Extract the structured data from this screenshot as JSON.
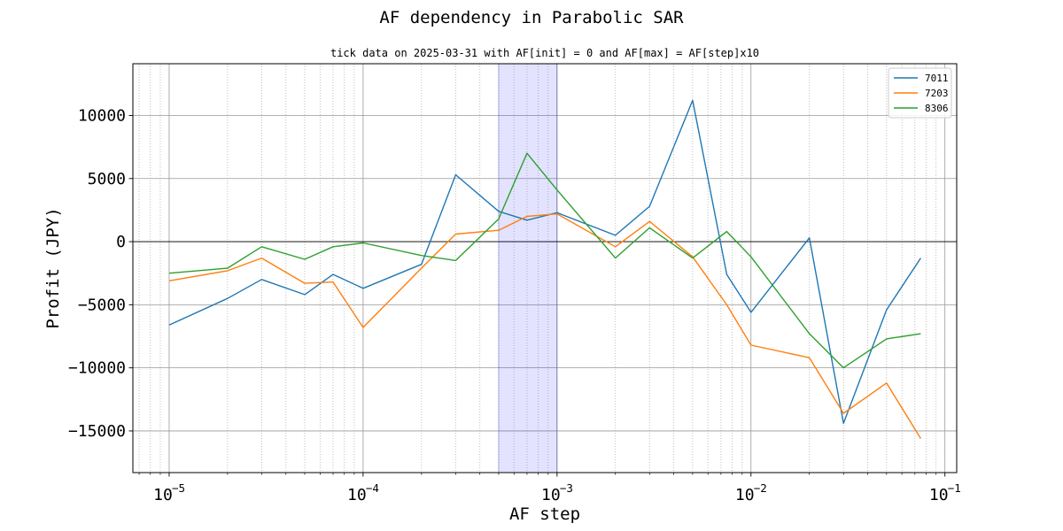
{
  "chart_data": {
    "type": "line",
    "title": "AF dependency in Parabolic SAR",
    "subtitle": "tick data on 2025-03-31 with AF[init] = 0 and AF[max] = AF[step]x10",
    "xlabel": "AF step",
    "ylabel": "Profit (JPY)",
    "xscale": "log",
    "xlim": [
      6.5e-06,
      0.115
    ],
    "ylim": [
      -18300,
      14100
    ],
    "x_tick_labels": [
      "10",
      "10",
      "10",
      "10",
      "10"
    ],
    "x_tick_exponents": [
      "−5",
      "−4",
      "−3",
      "−2",
      "−1"
    ],
    "x_ticks": [
      1e-05,
      0.0001,
      0.001,
      0.01,
      0.1
    ],
    "y_ticks": [
      -15000,
      -10000,
      -5000,
      0,
      5000,
      10000
    ],
    "y_tick_labels": [
      "−15000",
      "−10000",
      "−5000",
      "0",
      "5000",
      "10000"
    ],
    "grid": true,
    "legend_position": "top-right",
    "highlight_span": [
      0.0005,
      0.001
    ],
    "x": [
      1e-05,
      2e-05,
      3e-05,
      5e-05,
      7e-05,
      0.0001,
      0.0002,
      0.0003,
      0.0005,
      0.0007,
      0.001,
      0.002,
      0.003,
      0.005,
      0.0075,
      0.01,
      0.02,
      0.03,
      0.05,
      0.075
    ],
    "series": [
      {
        "name": "7011",
        "color": "#1f77b4",
        "values": [
          -6600,
          -4500,
          -3000,
          -4200,
          -2600,
          -3700,
          -1800,
          5300,
          2400,
          1700,
          2300,
          500,
          2800,
          11200,
          -2600,
          -5600,
          300,
          -14400,
          -5400,
          -1300
        ]
      },
      {
        "name": "7203",
        "color": "#ff7f0e",
        "values": [
          -3100,
          -2300,
          -1300,
          -3300,
          -3200,
          -6800,
          -2100,
          600,
          900,
          2000,
          2200,
          -400,
          1600,
          -1200,
          -5000,
          -8200,
          -9200,
          -13600,
          -11200,
          -15600
        ]
      },
      {
        "name": "8306",
        "color": "#2ca02c",
        "values": [
          -2500,
          -2100,
          -400,
          -1400,
          -400,
          -100,
          -1100,
          -1500,
          1800,
          7000,
          4100,
          -1300,
          1100,
          -1300,
          800,
          -1200,
          -7300,
          -10000,
          -7700,
          -7300
        ]
      }
    ]
  }
}
